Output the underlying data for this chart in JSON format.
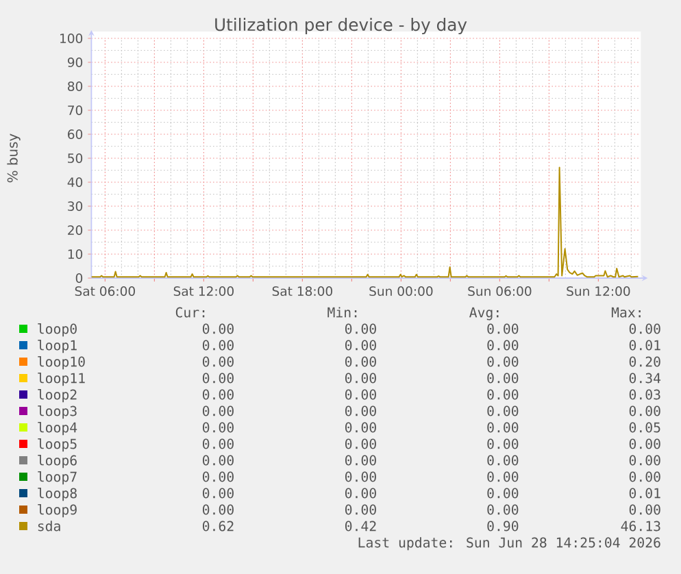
{
  "chart_data": {
    "type": "line",
    "title": "Utilization per device - by day",
    "ylabel": "% busy",
    "x": [
      "2026-06-27T05:10",
      "2026-06-27T05:42",
      "2026-06-27T05:47",
      "2026-06-27T05:52",
      "2026-06-27T06:33",
      "2026-06-27T06:38",
      "2026-06-27T06:43",
      "2026-06-27T08:03",
      "2026-06-27T08:08",
      "2026-06-27T08:13",
      "2026-06-27T09:38",
      "2026-06-27T09:43",
      "2026-06-27T09:48",
      "2026-06-27T11:13",
      "2026-06-27T11:18",
      "2026-06-27T11:23",
      "2026-06-27T12:10",
      "2026-06-27T12:15",
      "2026-06-27T12:20",
      "2026-06-27T13:58",
      "2026-06-27T14:03",
      "2026-06-27T14:08",
      "2026-06-27T14:48",
      "2026-06-27T14:53",
      "2026-06-27T14:58",
      "2026-06-27T21:53",
      "2026-06-27T21:58",
      "2026-06-27T22:03",
      "2026-06-27T23:53",
      "2026-06-27T23:58",
      "2026-06-28T00:03",
      "2026-06-28T00:11",
      "2026-06-28T00:16",
      "2026-06-28T00:51",
      "2026-06-28T00:56",
      "2026-06-28T01:01",
      "2026-06-28T02:12",
      "2026-06-28T02:17",
      "2026-06-28T02:22",
      "2026-06-28T02:53",
      "2026-06-28T02:58",
      "2026-06-28T03:03",
      "2026-06-28T03:55",
      "2026-06-28T04:00",
      "2026-06-28T04:05",
      "2026-06-28T06:18",
      "2026-06-28T06:23",
      "2026-06-28T06:28",
      "2026-06-28T07:05",
      "2026-06-28T07:10",
      "2026-06-28T07:15",
      "2026-06-28T09:20",
      "2026-06-28T09:27",
      "2026-06-28T09:33",
      "2026-06-28T09:38",
      "2026-06-28T09:47",
      "2026-06-28T09:58",
      "2026-06-28T10:07",
      "2026-06-28T10:15",
      "2026-06-28T10:25",
      "2026-06-28T10:33",
      "2026-06-28T10:43",
      "2026-06-28T10:53",
      "2026-06-28T11:02",
      "2026-06-28T11:10",
      "2026-06-28T11:18",
      "2026-06-28T11:45",
      "2026-06-28T11:50",
      "2026-06-28T12:20",
      "2026-06-28T12:25",
      "2026-06-28T12:33",
      "2026-06-28T12:45",
      "2026-06-28T12:55",
      "2026-06-28T13:02",
      "2026-06-28T13:07",
      "2026-06-28T13:15",
      "2026-06-28T13:30",
      "2026-06-28T13:35",
      "2026-06-28T13:55",
      "2026-06-28T14:00",
      "2026-06-28T14:25"
    ],
    "xlim": [
      "2026-06-27T05:10",
      "2026-06-28T14:30"
    ],
    "xticks": [
      {
        "value": "2026-06-27T06:00",
        "label": "Sat 06:00"
      },
      {
        "value": "2026-06-27T09:00",
        "label": null
      },
      {
        "value": "2026-06-27T12:00",
        "label": "Sat 12:00"
      },
      {
        "value": "2026-06-27T15:00",
        "label": null
      },
      {
        "value": "2026-06-27T18:00",
        "label": "Sat 18:00"
      },
      {
        "value": "2026-06-27T21:00",
        "label": null
      },
      {
        "value": "2026-06-28T00:00",
        "label": "Sun 00:00"
      },
      {
        "value": "2026-06-28T03:00",
        "label": null
      },
      {
        "value": "2026-06-28T06:00",
        "label": "Sun 06:00"
      },
      {
        "value": "2026-06-28T09:00",
        "label": null
      },
      {
        "value": "2026-06-28T12:00",
        "label": "Sun 12:00"
      }
    ],
    "ylim": [
      0,
      100
    ],
    "yticks": [
      0,
      10,
      20,
      30,
      40,
      50,
      60,
      70,
      80,
      90,
      100
    ],
    "grid": true,
    "legend": "bottom",
    "series": [
      {
        "name": "loop0",
        "color": "#00cc00",
        "values": [
          null,
          null,
          null,
          null,
          null,
          null,
          null,
          null,
          null,
          null,
          null,
          null,
          null,
          null,
          null,
          null,
          null,
          null,
          null,
          null,
          null,
          null,
          null,
          null,
          null,
          null,
          null,
          null,
          null,
          null,
          null,
          null,
          null,
          null,
          null,
          null,
          null,
          null,
          null,
          null,
          null,
          null,
          null,
          null,
          null,
          null,
          null,
          null,
          null,
          null,
          null,
          null,
          null,
          null,
          null,
          null,
          null,
          null,
          null,
          null,
          null,
          null,
          null,
          null,
          null,
          null,
          null,
          null,
          null,
          null,
          null,
          null,
          null,
          null,
          null,
          null,
          null,
          null,
          null,
          null,
          null
        ]
      },
      {
        "name": "loop1",
        "color": "#0066b3",
        "values": [
          null,
          null,
          null,
          null,
          null,
          null,
          null,
          null,
          null,
          null,
          null,
          null,
          null,
          null,
          null,
          null,
          null,
          null,
          null,
          null,
          null,
          null,
          null,
          null,
          null,
          null,
          null,
          null,
          null,
          null,
          null,
          null,
          null,
          null,
          null,
          null,
          null,
          null,
          null,
          null,
          null,
          null,
          null,
          null,
          null,
          null,
          null,
          null,
          null,
          null,
          null,
          null,
          null,
          null,
          null,
          null,
          null,
          null,
          null,
          null,
          null,
          null,
          null,
          null,
          null,
          null,
          null,
          null,
          null,
          null,
          null,
          null,
          null,
          null,
          null,
          null,
          null,
          null,
          null,
          null,
          null
        ]
      },
      {
        "name": "loop10",
        "color": "#ff8000",
        "values": [
          null,
          null,
          null,
          null,
          null,
          null,
          null,
          null,
          null,
          null,
          null,
          null,
          null,
          null,
          null,
          null,
          null,
          null,
          null,
          null,
          null,
          null,
          null,
          null,
          null,
          null,
          null,
          null,
          null,
          null,
          null,
          null,
          null,
          null,
          null,
          null,
          null,
          null,
          null,
          null,
          null,
          null,
          null,
          null,
          null,
          null,
          null,
          null,
          null,
          null,
          null,
          null,
          null,
          null,
          null,
          null,
          null,
          null,
          null,
          null,
          null,
          null,
          null,
          null,
          null,
          null,
          null,
          null,
          null,
          null,
          null,
          null,
          null,
          null,
          null,
          null,
          null,
          null,
          null,
          null,
          null
        ]
      },
      {
        "name": "loop11",
        "color": "#ffcc00",
        "values": [
          null,
          null,
          null,
          null,
          null,
          null,
          null,
          null,
          null,
          null,
          null,
          null,
          null,
          null,
          null,
          null,
          null,
          null,
          null,
          null,
          null,
          null,
          null,
          null,
          null,
          null,
          null,
          null,
          null,
          null,
          null,
          null,
          null,
          null,
          null,
          null,
          null,
          null,
          null,
          null,
          null,
          null,
          null,
          null,
          null,
          null,
          null,
          null,
          null,
          null,
          null,
          null,
          null,
          null,
          null,
          null,
          null,
          null,
          null,
          null,
          null,
          null,
          null,
          null,
          null,
          null,
          null,
          null,
          null,
          null,
          null,
          null,
          null,
          null,
          null,
          null,
          null,
          null,
          null,
          null,
          null
        ]
      },
      {
        "name": "loop2",
        "color": "#330099",
        "values": [
          null,
          null,
          null,
          null,
          null,
          null,
          null,
          null,
          null,
          null,
          null,
          null,
          null,
          null,
          null,
          null,
          null,
          null,
          null,
          null,
          null,
          null,
          null,
          null,
          null,
          null,
          null,
          null,
          null,
          null,
          null,
          null,
          null,
          null,
          null,
          null,
          null,
          null,
          null,
          null,
          null,
          null,
          null,
          null,
          null,
          null,
          null,
          null,
          null,
          null,
          null,
          null,
          null,
          null,
          null,
          null,
          null,
          null,
          null,
          null,
          null,
          null,
          null,
          null,
          null,
          null,
          null,
          null,
          null,
          null,
          null,
          null,
          null,
          null,
          null,
          null,
          null,
          null,
          null,
          null,
          null
        ]
      },
      {
        "name": "loop3",
        "color": "#990099",
        "values": [
          null,
          null,
          null,
          null,
          null,
          null,
          null,
          null,
          null,
          null,
          null,
          null,
          null,
          null,
          null,
          null,
          null,
          null,
          null,
          null,
          null,
          null,
          null,
          null,
          null,
          null,
          null,
          null,
          null,
          null,
          null,
          null,
          null,
          null,
          null,
          null,
          null,
          null,
          null,
          null,
          null,
          null,
          null,
          null,
          null,
          null,
          null,
          null,
          null,
          null,
          null,
          null,
          null,
          null,
          null,
          null,
          null,
          null,
          null,
          null,
          null,
          null,
          null,
          null,
          null,
          null,
          null,
          null,
          null,
          null,
          null,
          null,
          null,
          null,
          null,
          null,
          null,
          null,
          null,
          null,
          null
        ]
      },
      {
        "name": "loop4",
        "color": "#ccff00",
        "values": [
          null,
          null,
          null,
          null,
          null,
          null,
          null,
          null,
          null,
          null,
          null,
          null,
          null,
          null,
          null,
          null,
          null,
          null,
          null,
          null,
          null,
          null,
          null,
          null,
          null,
          null,
          null,
          null,
          null,
          null,
          null,
          null,
          null,
          null,
          null,
          null,
          null,
          null,
          null,
          null,
          null,
          null,
          null,
          null,
          null,
          null,
          null,
          null,
          null,
          null,
          null,
          null,
          null,
          null,
          null,
          null,
          null,
          null,
          null,
          null,
          null,
          null,
          null,
          null,
          null,
          null,
          null,
          null,
          null,
          null,
          null,
          null,
          null,
          null,
          null,
          null,
          null,
          null,
          null,
          null,
          null
        ]
      },
      {
        "name": "loop5",
        "color": "#ff0000",
        "values": [
          null,
          null,
          null,
          null,
          null,
          null,
          null,
          null,
          null,
          null,
          null,
          null,
          null,
          null,
          null,
          null,
          null,
          null,
          null,
          null,
          null,
          null,
          null,
          null,
          null,
          null,
          null,
          null,
          null,
          null,
          null,
          null,
          null,
          null,
          null,
          null,
          null,
          null,
          null,
          null,
          null,
          null,
          null,
          null,
          null,
          null,
          null,
          null,
          null,
          null,
          null,
          null,
          null,
          null,
          null,
          null,
          null,
          null,
          null,
          null,
          null,
          null,
          null,
          null,
          null,
          null,
          null,
          null,
          null,
          null,
          null,
          null,
          null,
          null,
          null,
          null,
          null,
          null,
          null,
          null,
          null
        ]
      },
      {
        "name": "loop6",
        "color": "#808080",
        "values": [
          null,
          null,
          null,
          null,
          null,
          null,
          null,
          null,
          null,
          null,
          null,
          null,
          null,
          null,
          null,
          null,
          null,
          null,
          null,
          null,
          null,
          null,
          null,
          null,
          null,
          null,
          null,
          null,
          null,
          null,
          null,
          null,
          null,
          null,
          null,
          null,
          null,
          null,
          null,
          null,
          null,
          null,
          null,
          null,
          null,
          null,
          null,
          null,
          null,
          null,
          null,
          null,
          null,
          null,
          null,
          null,
          null,
          null,
          null,
          null,
          null,
          null,
          null,
          null,
          null,
          null,
          null,
          null,
          null,
          null,
          null,
          null,
          null,
          null,
          null,
          null,
          null,
          null,
          null,
          null,
          null
        ]
      },
      {
        "name": "loop7",
        "color": "#008f00",
        "values": [
          null,
          null,
          null,
          null,
          null,
          null,
          null,
          null,
          null,
          null,
          null,
          null,
          null,
          null,
          null,
          null,
          null,
          null,
          null,
          null,
          null,
          null,
          null,
          null,
          null,
          null,
          null,
          null,
          null,
          null,
          null,
          null,
          null,
          null,
          null,
          null,
          null,
          null,
          null,
          null,
          null,
          null,
          null,
          null,
          null,
          null,
          null,
          null,
          null,
          null,
          null,
          null,
          null,
          null,
          null,
          null,
          null,
          null,
          null,
          null,
          null,
          null,
          null,
          null,
          null,
          null,
          null,
          null,
          null,
          null,
          null,
          null,
          null,
          null,
          null,
          null,
          null,
          null,
          null,
          null,
          null
        ]
      },
      {
        "name": "loop8",
        "color": "#00487d",
        "values": [
          null,
          null,
          null,
          null,
          null,
          null,
          null,
          null,
          null,
          null,
          null,
          null,
          null,
          null,
          null,
          null,
          null,
          null,
          null,
          null,
          null,
          null,
          null,
          null,
          null,
          null,
          null,
          null,
          null,
          null,
          null,
          null,
          null,
          null,
          null,
          null,
          null,
          null,
          null,
          null,
          null,
          null,
          null,
          null,
          null,
          null,
          null,
          null,
          null,
          null,
          null,
          null,
          null,
          null,
          null,
          null,
          null,
          null,
          null,
          null,
          null,
          null,
          null,
          null,
          null,
          null,
          null,
          null,
          null,
          null,
          null,
          null,
          null,
          null,
          null,
          null,
          null,
          null,
          null,
          null,
          null
        ]
      },
      {
        "name": "loop9",
        "color": "#b35a00",
        "values": [
          null,
          null,
          null,
          null,
          null,
          null,
          null,
          null,
          null,
          null,
          null,
          null,
          null,
          null,
          null,
          null,
          null,
          null,
          null,
          null,
          null,
          null,
          null,
          null,
          null,
          null,
          null,
          null,
          null,
          null,
          null,
          null,
          null,
          null,
          null,
          null,
          null,
          null,
          null,
          null,
          null,
          null,
          null,
          null,
          null,
          null,
          null,
          null,
          null,
          null,
          null,
          null,
          null,
          null,
          null,
          null,
          null,
          null,
          null,
          null,
          null,
          null,
          null,
          null,
          null,
          null,
          null,
          null,
          null,
          null,
          null,
          null,
          null,
          null,
          null,
          null,
          null,
          null,
          null,
          null,
          null
        ]
      },
      {
        "name": "sda",
        "color": "#b38f00",
        "values": [
          0.5,
          0.5,
          1.0,
          0.5,
          0.5,
          2.7,
          0.5,
          0.5,
          1.0,
          0.5,
          0.5,
          2.3,
          0.5,
          0.5,
          1.7,
          0.5,
          0.5,
          0.9,
          0.5,
          0.5,
          1.0,
          0.5,
          0.5,
          1.0,
          0.5,
          0.5,
          1.5,
          0.5,
          0.5,
          1.5,
          0.5,
          1.0,
          0.5,
          0.5,
          1.5,
          0.5,
          0.5,
          0.8,
          0.5,
          0.5,
          4.6,
          0.5,
          0.5,
          1.0,
          0.5,
          0.5,
          0.9,
          0.5,
          0.5,
          1.0,
          0.5,
          0.5,
          1.7,
          1.0,
          46.13,
          1.0,
          12.2,
          3.6,
          2.3,
          1.7,
          2.9,
          1.2,
          1.7,
          2.1,
          1.0,
          0.5,
          0.5,
          1.0,
          1.0,
          3.0,
          0.5,
          1.0,
          0.5,
          0.5,
          4.0,
          0.5,
          1.0,
          0.5,
          1.0,
          0.5,
          0.62
        ]
      }
    ],
    "annotations": [
      "Cur:",
      "Min:",
      "Avg:",
      "Max:",
      "0.00",
      "0.00",
      "0.00",
      "0.00",
      "0.00",
      "0.00",
      "0.00",
      "0.01",
      "0.00",
      "0.00",
      "0.00",
      "0.20",
      "0.00",
      "0.00",
      "0.00",
      "0.34",
      "0.00",
      "0.00",
      "0.00",
      "0.03",
      "0.00",
      "0.00",
      "0.00",
      "0.00",
      "0.00",
      "0.00",
      "0.00",
      "0.05",
      "0.00",
      "0.00",
      "0.00",
      "0.00",
      "0.00",
      "0.00",
      "0.00",
      "0.00",
      "0.00",
      "0.00",
      "0.00",
      "0.00",
      "0.00",
      "0.00",
      "0.00",
      "0.01",
      "0.00",
      "0.00",
      "0.00",
      "0.00",
      "0.62",
      "0.42",
      "0.90",
      "46.13",
      "Last update: Sun Jun 28 14:25:04 2026"
    ]
  }
}
